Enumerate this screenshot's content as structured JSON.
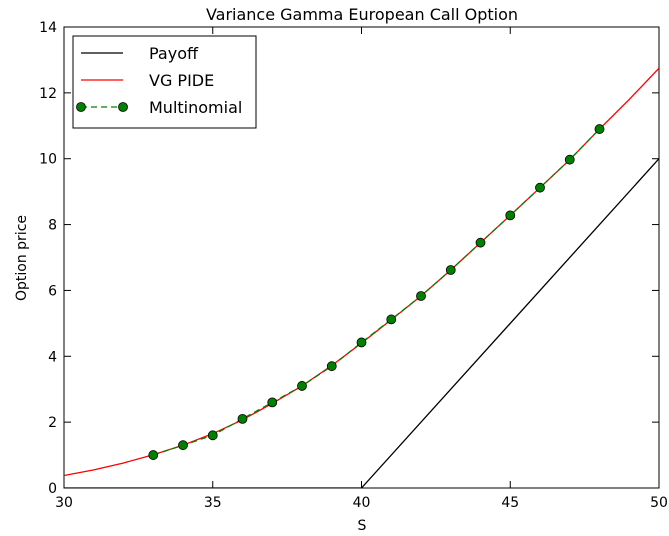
{
  "chart_data": {
    "type": "line",
    "title": "Variance Gamma European Call Option",
    "xlabel": "S",
    "ylabel": "Option price",
    "xlim": [
      30,
      50
    ],
    "ylim": [
      0,
      14
    ],
    "xticks": [
      "30",
      "35",
      "40",
      "45",
      "50"
    ],
    "yticks": [
      "0",
      "2",
      "4",
      "6",
      "8",
      "10",
      "12",
      "14"
    ],
    "grid": false,
    "legend_position": "top-left",
    "series": [
      {
        "name": "Payoff",
        "color": "#000000",
        "style": "solid",
        "x": [
          30,
          40,
          50
        ],
        "y": [
          0,
          0,
          10
        ]
      },
      {
        "name": "VG PIDE",
        "color": "#ff0000",
        "style": "solid",
        "x": [
          30,
          31,
          32,
          33,
          34,
          35,
          36,
          37,
          38,
          39,
          40,
          41,
          42,
          43,
          44,
          45,
          46,
          47,
          48,
          49,
          50
        ],
        "y": [
          0.38,
          0.55,
          0.76,
          1.01,
          1.3,
          1.65,
          2.07,
          2.57,
          3.1,
          3.72,
          4.4,
          5.11,
          5.83,
          6.62,
          7.45,
          8.28,
          9.12,
          9.97,
          10.9,
          11.8,
          12.75
        ]
      },
      {
        "name": "Multinomial",
        "color": "#008000",
        "style": "dashed",
        "marker": "circle",
        "x": [
          33,
          34,
          35,
          36,
          37,
          38,
          39,
          40,
          41,
          42,
          43,
          44,
          45,
          46,
          47,
          48
        ],
        "y": [
          1.0,
          1.3,
          1.6,
          2.1,
          2.6,
          3.1,
          3.7,
          4.42,
          5.12,
          5.83,
          6.62,
          7.45,
          8.28,
          9.12,
          9.97,
          10.9
        ]
      }
    ]
  }
}
